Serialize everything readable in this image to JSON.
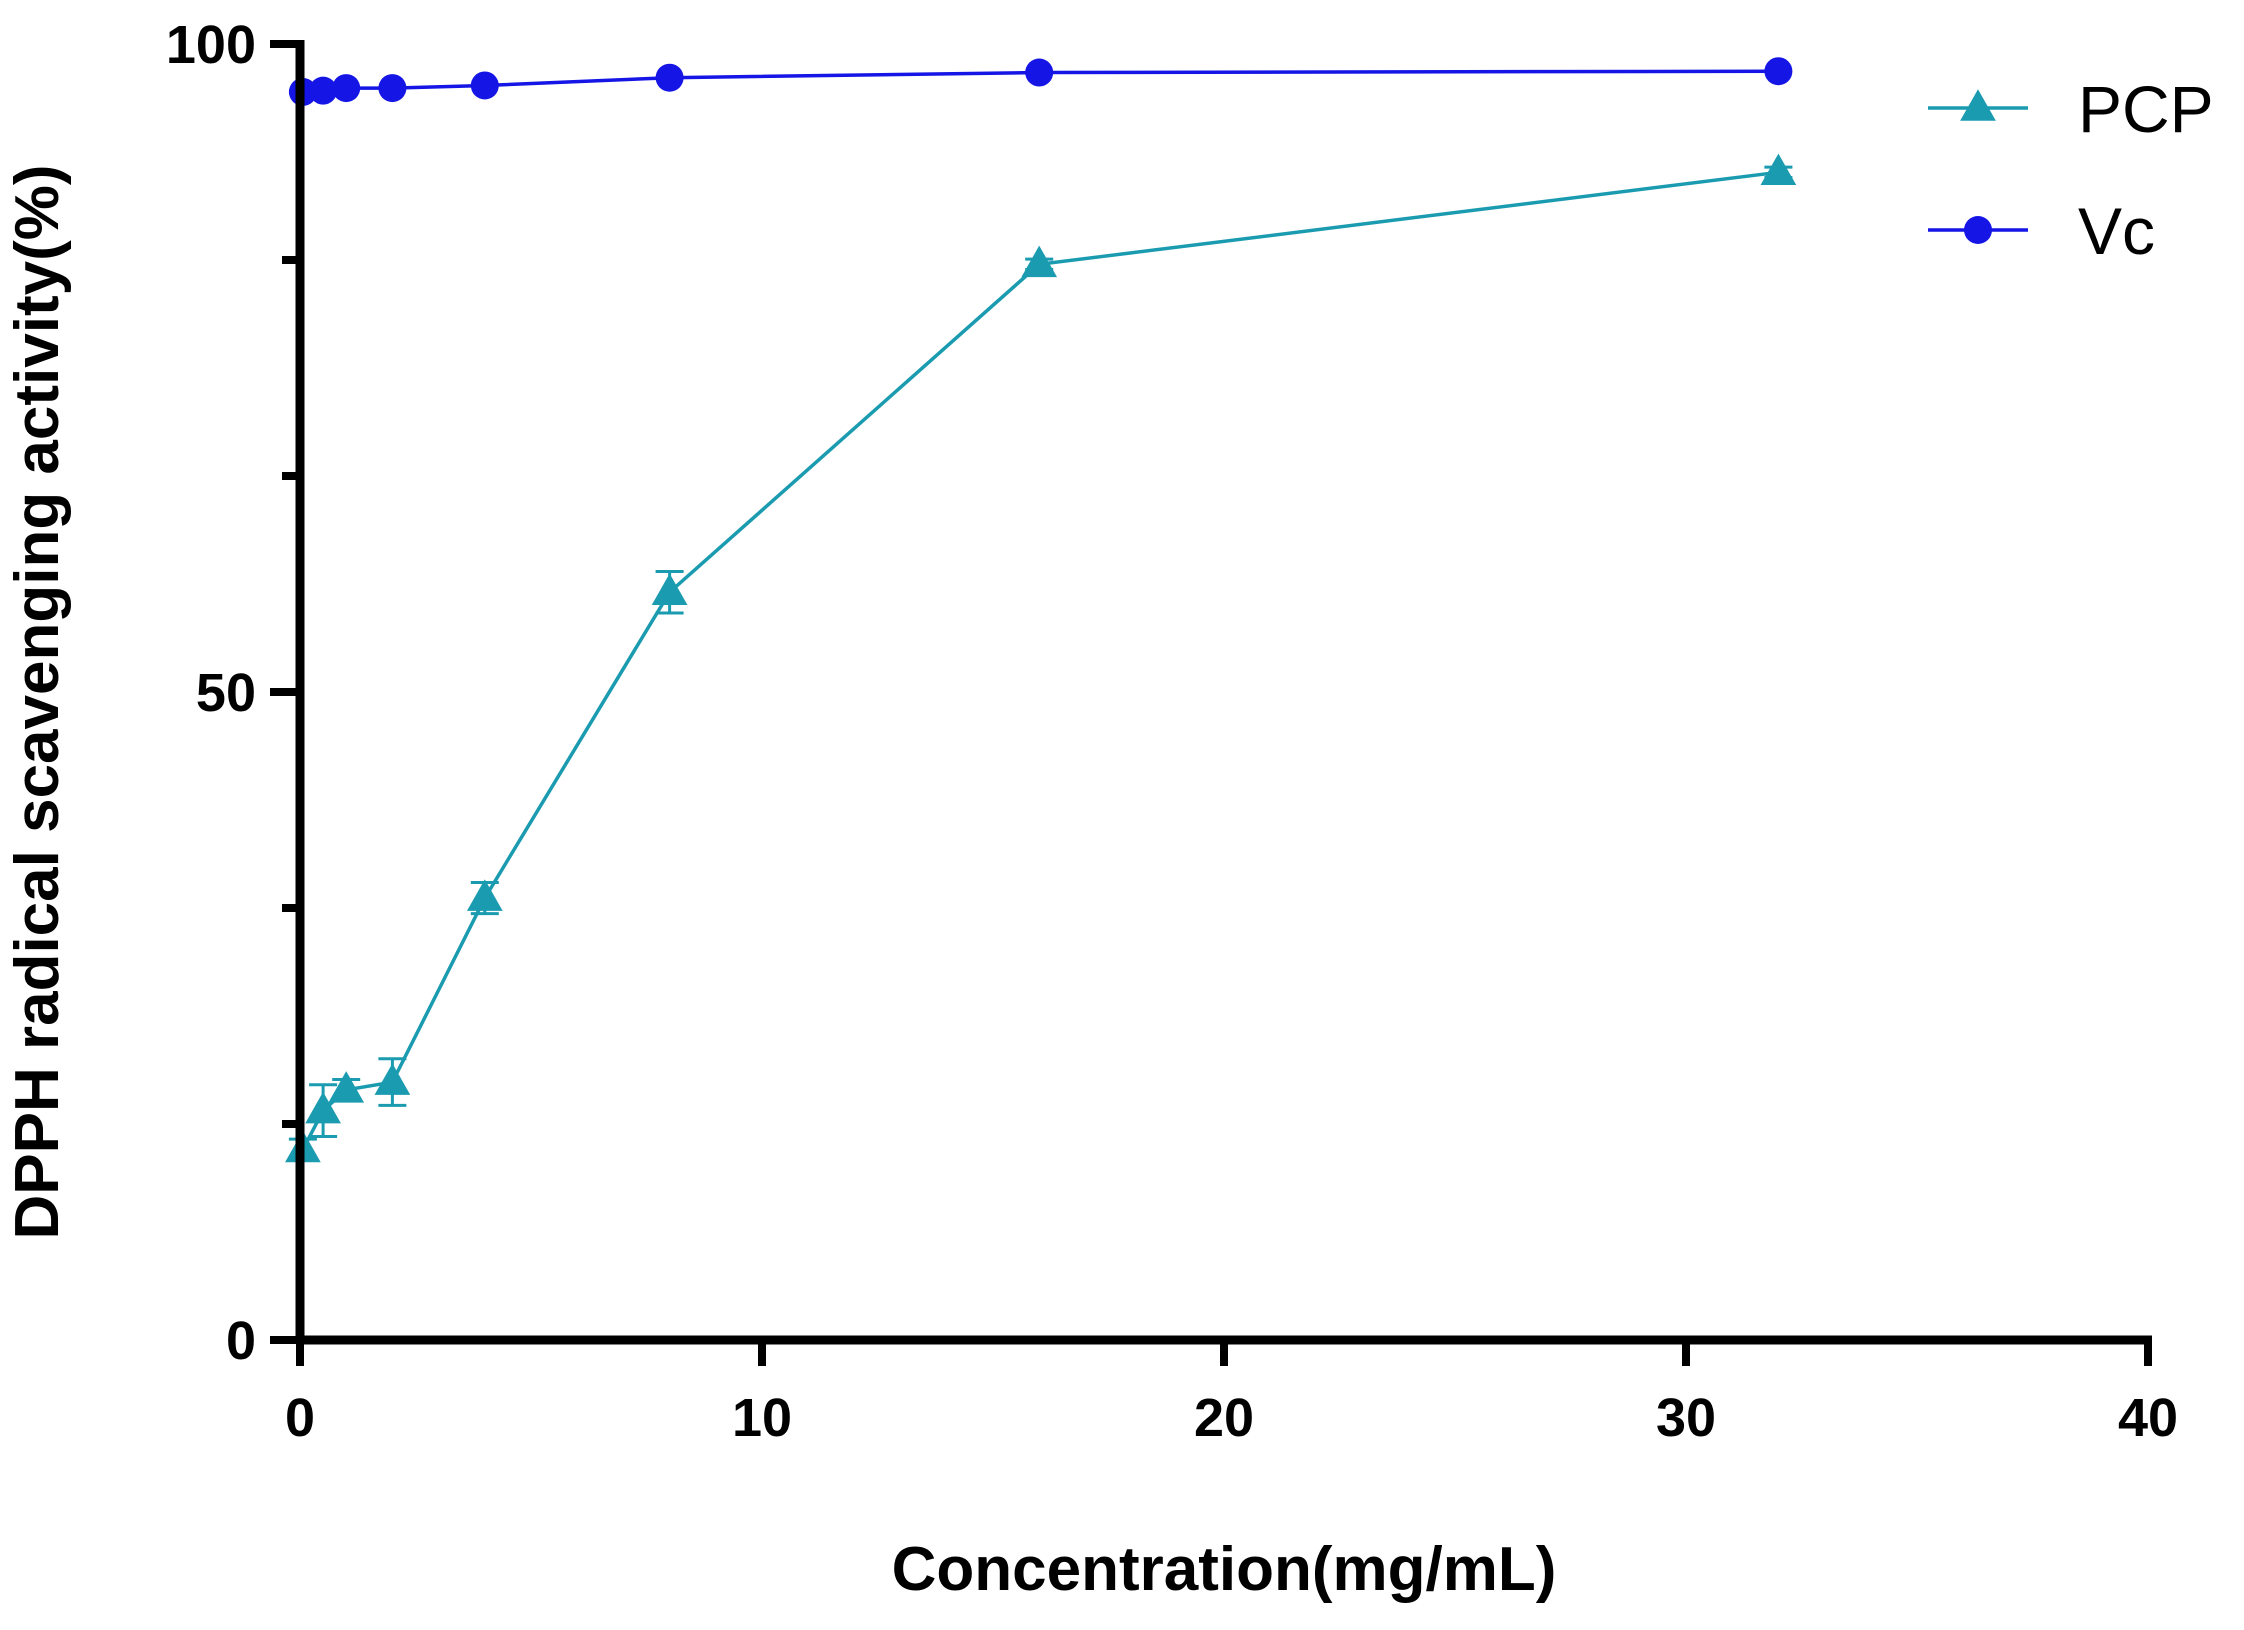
{
  "chart_data": {
    "type": "line",
    "title": "",
    "xlabel": "Concentration(mg/mL)",
    "ylabel": "DPPH radical scavenging activity(%)",
    "xlim": [
      0,
      40
    ],
    "ylim": [
      0,
      100
    ],
    "x_major_ticks": [
      0,
      10,
      20,
      30,
      40
    ],
    "y_major_ticks": [
      0,
      50,
      100
    ],
    "y_minor_ticks": [
      16.67,
      33.33,
      66.67,
      83.33
    ],
    "grid": false,
    "legend_position": "top-right",
    "series": [
      {
        "name": "PCP",
        "marker": "triangle",
        "color": "#1a9bb0",
        "x": [
          0.0625,
          0.5,
          1,
          2,
          4,
          8,
          16,
          32
        ],
        "y": [
          14.7,
          17.7,
          19.3,
          19.9,
          34.1,
          57.7,
          83.0,
          90.1
        ],
        "error": [
          0.8,
          2.0,
          0.8,
          1.8,
          1.2,
          1.6,
          0.4,
          0.4
        ]
      },
      {
        "name": "Vc",
        "marker": "circle",
        "color": "#1515e6",
        "x": [
          0.0625,
          0.5,
          1,
          2,
          4,
          8,
          16,
          32
        ],
        "y": [
          96.3,
          96.4,
          96.6,
          96.6,
          96.8,
          97.4,
          97.8,
          97.9
        ],
        "error": [
          0,
          0,
          0,
          0,
          0,
          0,
          0,
          0
        ]
      }
    ]
  }
}
